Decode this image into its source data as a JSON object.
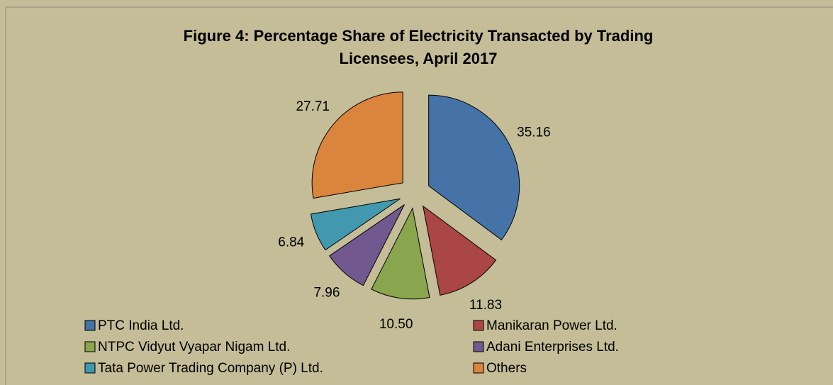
{
  "chart_data": {
    "type": "pie",
    "title": "Figure 4: Percentage Share of Electricity Transacted by Trading Licensees, April 2017",
    "categories": [
      "PTC India Ltd.",
      "Manikaran Power Ltd.",
      "NTPC Vidyut Vyapar Nigam Ltd.",
      "Adani Enterprises Ltd.",
      "Tata Power Trading Company (P) Ltd.",
      "Others"
    ],
    "values": [
      35.16,
      11.83,
      10.5,
      7.96,
      6.84,
      27.71
    ],
    "value_labels": [
      "35.16",
      "11.83",
      "10.50",
      "7.96",
      "6.84",
      "27.71"
    ],
    "colors": [
      "#4572a7",
      "#aa4643",
      "#89a54e",
      "#71588f",
      "#4198af",
      "#db843d"
    ],
    "legend": "bottom"
  }
}
